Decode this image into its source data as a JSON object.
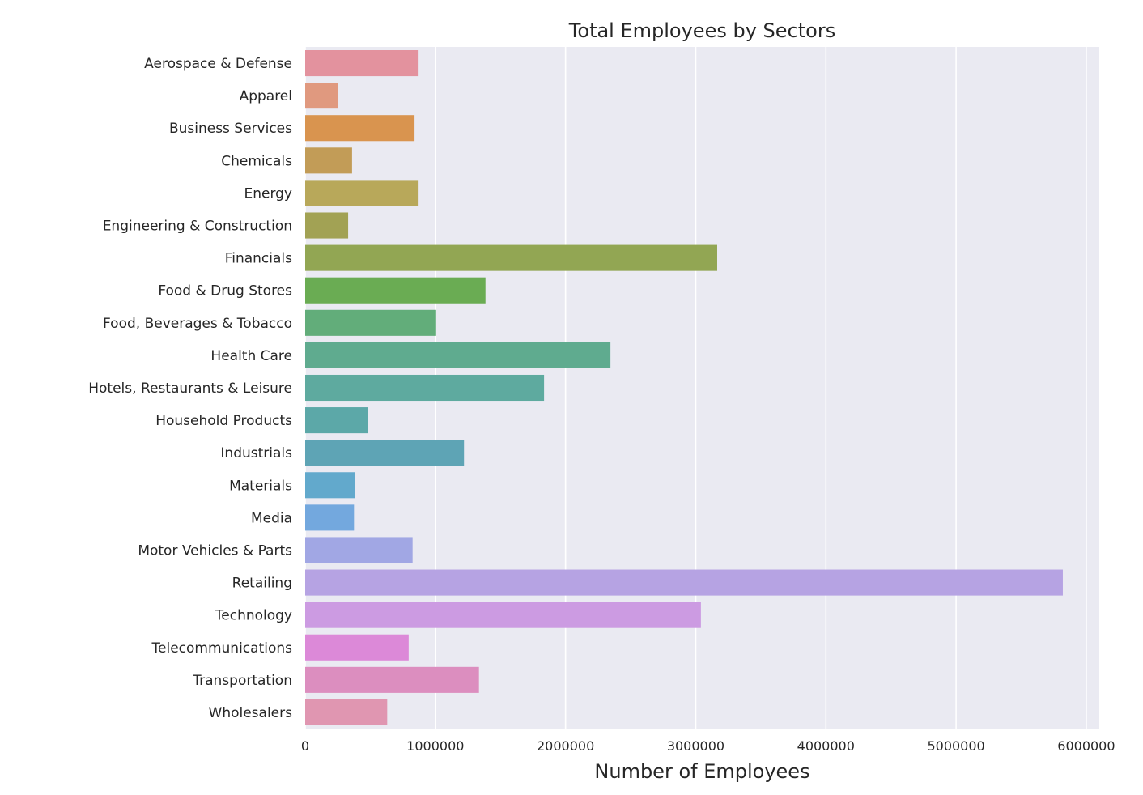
{
  "chart_data": {
    "type": "bar",
    "orientation": "horizontal",
    "title": "Total Employees by Sectors",
    "xlabel": "Number of Employees",
    "ylabel": "",
    "xlim": [
      0,
      6100000
    ],
    "xticks": [
      0,
      1000000,
      2000000,
      3000000,
      4000000,
      5000000,
      6000000
    ],
    "xtick_labels": [
      "0",
      "1000000",
      "2000000",
      "3000000",
      "4000000",
      "5000000",
      "6000000"
    ],
    "grid": true,
    "background_color": "#eaeaf2",
    "categories": [
      "Aerospace & Defense",
      "Apparel",
      "Business Services",
      "Chemicals",
      "Energy",
      "Engineering & Construction",
      "Financials",
      "Food & Drug Stores",
      "Food, Beverages & Tobacco",
      "Health Care",
      "Hotels, Restaurants & Leisure",
      "Household Products",
      "Industrials",
      "Materials",
      "Media",
      "Motor Vehicles & Parts",
      "Retailing",
      "Technology",
      "Telecommunications",
      "Transportation",
      "Wholesalers"
    ],
    "values": [
      865000,
      250000,
      840000,
      360000,
      865000,
      330000,
      3165000,
      1385000,
      1000000,
      2345000,
      1835000,
      480000,
      1220000,
      385000,
      375000,
      825000,
      5820000,
      3040000,
      795000,
      1335000,
      630000
    ],
    "colors": [
      "#e3929e",
      "#e0997f",
      "#d9944f",
      "#c29c57",
      "#b8a85a",
      "#a2a254",
      "#92a653",
      "#6aac53",
      "#62ad7a",
      "#5fab8f",
      "#5eaa9f",
      "#5ca8a8",
      "#5ea4b5",
      "#62a9cc",
      "#73a8de",
      "#a1a7e4",
      "#b6a3e3",
      "#cc9be2",
      "#dc89d8",
      "#dc8ebf",
      "#e096b1"
    ]
  }
}
